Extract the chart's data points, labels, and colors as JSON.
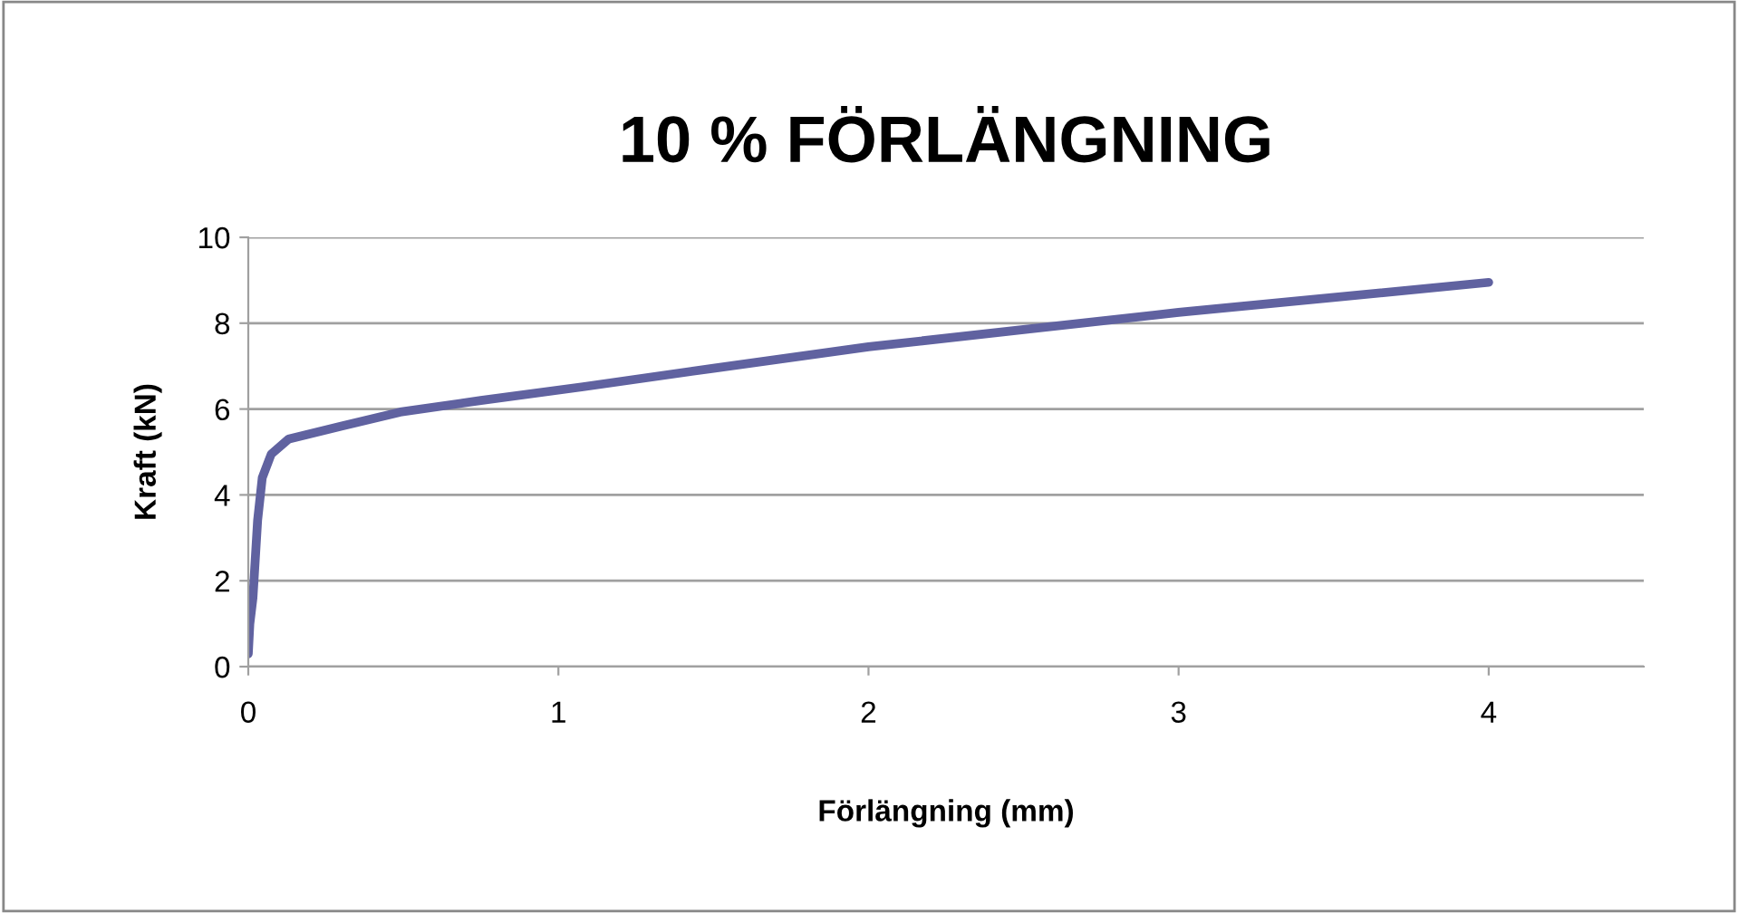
{
  "chart_data": {
    "type": "line",
    "title": "10 % FÖRLÄNGNING",
    "xlabel": "Förlängning (mm)",
    "ylabel": "Kraft (kN)",
    "x": [
      0,
      0.005,
      0.015,
      0.03,
      0.045,
      0.074,
      0.13,
      0.3,
      0.49,
      0.75,
      1.08,
      1.5,
      2,
      2.5,
      3,
      3.5,
      4
    ],
    "series": [
      {
        "color": "#6062a0",
        "values": [
          0.3,
          1.0,
          1.6,
          3.4,
          4.4,
          4.95,
          5.3,
          5.6,
          5.93,
          6.2,
          6.52,
          6.95,
          7.45,
          7.85,
          8.25,
          8.6,
          8.95
        ]
      }
    ],
    "xlim": [
      0,
      4.5
    ],
    "xticks": [
      0,
      1,
      2,
      3,
      4
    ],
    "ylim": [
      0,
      10
    ],
    "yticks": [
      0,
      2,
      4,
      6,
      8,
      10
    ],
    "grid": "y",
    "legend": false,
    "marker": "none",
    "line_style": "solid"
  }
}
